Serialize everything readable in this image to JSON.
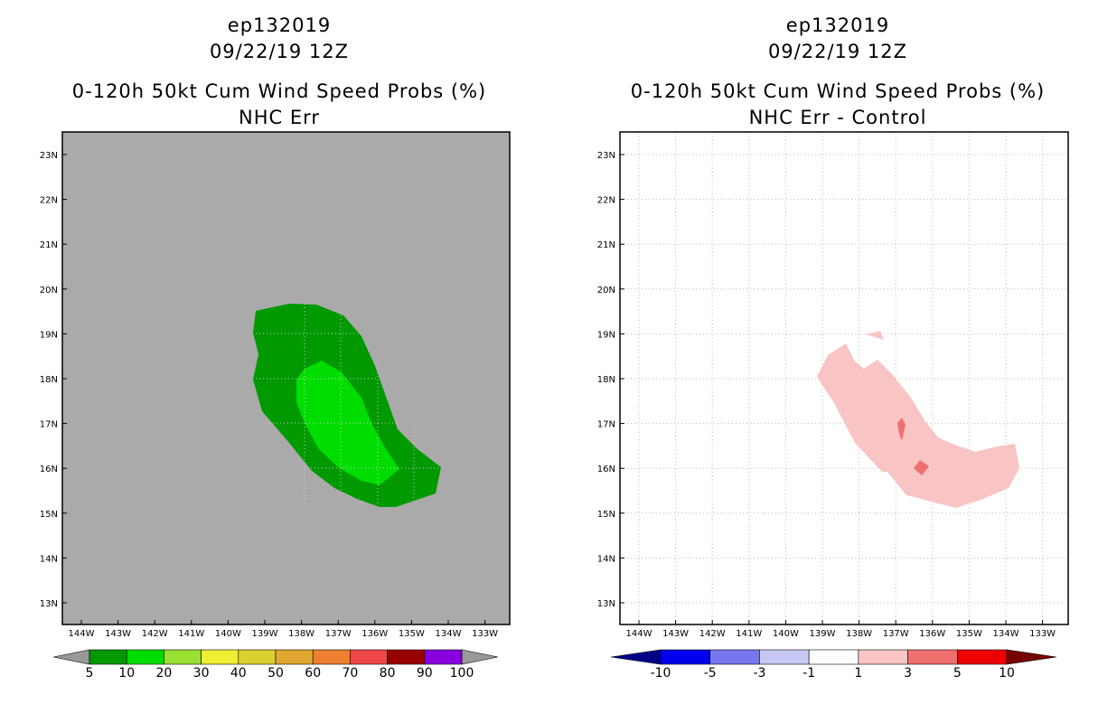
{
  "left_panel": {
    "storm_id": "ep132019",
    "date_time": "09/22/19 12Z",
    "product_title": "0-120h 50kt Cum Wind Speed Probs (%)",
    "subtitle": "NHC Err",
    "background_color": "#aaaaaa",
    "field_levels": [
      {
        "range": "5-10",
        "color": "#009900"
      },
      {
        "range": "10-20",
        "color": "#00dd00"
      }
    ],
    "colorbar": {
      "labels": [
        "5",
        "10",
        "20",
        "30",
        "40",
        "50",
        "60",
        "70",
        "80",
        "90",
        "100"
      ],
      "colors": [
        "#009900",
        "#00dd00",
        "#99e033",
        "#eeee33",
        "#dcd030",
        "#e0a830",
        "#ec8030",
        "#f04848",
        "#990000",
        "#8800dd"
      ],
      "under_color": "#999999",
      "over_color": "#999999"
    }
  },
  "right_panel": {
    "storm_id": "ep132019",
    "date_time": "09/22/19 12Z",
    "product_title": "0-120h 50kt Cum Wind Speed Probs (%)",
    "subtitle": "NHC Err - Control",
    "background_color": "#ffffff",
    "field_levels": [
      {
        "range": "1-3",
        "color": "#f8c4c4"
      },
      {
        "range": "3-5",
        "color": "#f07070"
      }
    ],
    "colorbar": {
      "labels": [
        "-10",
        "-5",
        "-3",
        "-1",
        "1",
        "3",
        "5",
        "10"
      ],
      "colors": [
        "#0000ee",
        "#7777ee",
        "#c8c8f4",
        "#ffffff",
        "#f8c4c4",
        "#f07070",
        "#ee0000"
      ],
      "under_color": "#000088",
      "over_color": "#770000"
    }
  },
  "axes": {
    "lat_labels": [
      "23N",
      "22N",
      "21N",
      "20N",
      "19N",
      "18N",
      "17N",
      "16N",
      "15N",
      "14N",
      "13N"
    ],
    "lon_labels": [
      "144W",
      "143W",
      "142W",
      "141W",
      "140W",
      "139W",
      "138W",
      "137W",
      "136W",
      "135W",
      "134W",
      "133W"
    ]
  }
}
